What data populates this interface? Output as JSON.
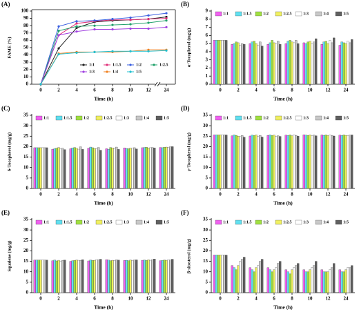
{
  "chart_data": [
    {
      "type": "line",
      "label": "(A)",
      "ylabel": "FAME (%)",
      "xlabel": "Time (h)",
      "categories": [
        "0",
        "2",
        "4",
        "6",
        "8",
        "10",
        "12",
        "24"
      ],
      "ylim": [
        0,
        100
      ],
      "yticks": [
        0,
        10,
        20,
        30,
        40,
        50,
        60,
        70,
        80,
        90,
        100
      ],
      "legend": "lower-right",
      "series": [
        {
          "name": "1:1",
          "color": "#222222",
          "values": [
            0,
            49,
            77,
            85,
            87,
            88,
            89,
            92
          ]
        },
        {
          "name": "1:1.5",
          "color": "#e0307a",
          "values": [
            0,
            67,
            83,
            86,
            88,
            88,
            89,
            90
          ]
        },
        {
          "name": "1:2",
          "color": "#3a5fe0",
          "values": [
            0,
            79,
            86,
            87,
            89,
            91,
            94,
            97
          ]
        },
        {
          "name": "1:2.5",
          "color": "#1fa06a",
          "values": [
            0,
            73,
            79,
            80,
            81,
            82,
            84,
            87
          ]
        },
        {
          "name": "1:3",
          "color": "#a040e0",
          "values": [
            0,
            67,
            72,
            75,
            75,
            76,
            76,
            78
          ]
        },
        {
          "name": "1:4",
          "color": "#f08020",
          "values": [
            0,
            42,
            44,
            44,
            44,
            45,
            47,
            47
          ]
        },
        {
          "name": "1:5",
          "color": "#20c0d0",
          "values": [
            0,
            41,
            43,
            44,
            45,
            45,
            45,
            46
          ]
        }
      ]
    },
    {
      "type": "bar",
      "label": "(B)",
      "ylabel": "α-Tocopherol (mg/g)",
      "xlabel": "Time (h)",
      "categories": [
        "0",
        "2",
        "4",
        "6",
        "8",
        "10",
        "12",
        "24"
      ],
      "ylim": [
        0,
        9
      ],
      "yticks": [
        0,
        1,
        2,
        3,
        4,
        5,
        6,
        7,
        8,
        9
      ],
      "legend": "top",
      "series": [
        {
          "name": "1:1",
          "color": "#f060f0",
          "values": [
            5.4,
            4.9,
            5.0,
            4.9,
            5.0,
            5.1,
            4.9,
            4.8
          ]
        },
        {
          "name": "1:1.5",
          "color": "#60e0f0",
          "values": [
            5.4,
            5.0,
            5.2,
            5.1,
            5.3,
            5.0,
            5.2,
            5.2
          ]
        },
        {
          "name": "1:2",
          "color": "#a0e040",
          "values": [
            5.4,
            5.2,
            5.3,
            5.4,
            5.4,
            5.2,
            5.3,
            5.1
          ]
        },
        {
          "name": "1:2.5",
          "color": "#f0f060",
          "values": [
            5.4,
            5.1,
            5.0,
            5.1,
            5.2,
            5.3,
            5.0,
            5.0
          ]
        },
        {
          "name": "1:3",
          "color": "#ffffff",
          "values": [
            5.4,
            4.8,
            4.8,
            5.0,
            5.1,
            5.0,
            5.4,
            5.3
          ]
        },
        {
          "name": "1:4",
          "color": "#c8c8c8",
          "values": [
            5.4,
            5.0,
            5.2,
            5.3,
            5.4,
            5.2,
            5.1,
            5.1
          ]
        },
        {
          "name": "1:5",
          "color": "#606060",
          "values": [
            5.4,
            4.9,
            4.7,
            4.9,
            5.0,
            5.6,
            5.7,
            5.5
          ]
        }
      ]
    },
    {
      "type": "bar",
      "label": "(C)",
      "ylabel": "δ-Tocopherol (mg/g)",
      "xlabel": "Time (h)",
      "categories": [
        "0",
        "2",
        "4",
        "6",
        "8",
        "10",
        "12",
        "24"
      ],
      "ylim": [
        0,
        35
      ],
      "yticks": [
        0,
        5,
        10,
        15,
        20,
        25,
        30,
        35
      ],
      "legend": "top",
      "series": [
        {
          "name": "1:1",
          "color": "#f060f0",
          "values": [
            19.5,
            18.8,
            19.0,
            19.3,
            19.0,
            19.4,
            19.5,
            19.6
          ]
        },
        {
          "name": "1:1.5",
          "color": "#60e0f0",
          "values": [
            19.5,
            19.0,
            19.4,
            19.8,
            18.7,
            19.1,
            19.6,
            19.5
          ]
        },
        {
          "name": "1:2",
          "color": "#a0e040",
          "values": [
            19.5,
            19.3,
            19.6,
            19.5,
            19.6,
            19.0,
            19.7,
            19.7
          ]
        },
        {
          "name": "1:2.5",
          "color": "#f0f060",
          "values": [
            19.5,
            19.6,
            19.2,
            19.1,
            19.4,
            19.3,
            19.4,
            19.8
          ]
        },
        {
          "name": "1:3",
          "color": "#ffffff",
          "values": [
            19.5,
            18.9,
            18.8,
            19.0,
            19.1,
            19.2,
            19.5,
            19.6
          ]
        },
        {
          "name": "1:4",
          "color": "#c8c8c8",
          "values": [
            19.5,
            19.2,
            19.9,
            19.6,
            19.8,
            19.5,
            19.6,
            19.9
          ]
        },
        {
          "name": "1:5",
          "color": "#606060",
          "values": [
            19.5,
            18.6,
            18.7,
            18.3,
            18.7,
            18.9,
            19.4,
            20.0
          ]
        }
      ]
    },
    {
      "type": "bar",
      "label": "(D)",
      "ylabel": "γ-Tocopherol (mg/g)",
      "xlabel": "Time (h)",
      "categories": [
        "0",
        "2",
        "4",
        "6",
        "8",
        "10",
        "12",
        "24"
      ],
      "ylim": [
        0,
        35
      ],
      "yticks": [
        0,
        5,
        10,
        15,
        20,
        25,
        30,
        35
      ],
      "legend": "top",
      "series": [
        {
          "name": "1:1",
          "color": "#f060f0",
          "values": [
            25.6,
            25.2,
            25.1,
            25.4,
            25.5,
            25.7,
            25.6,
            25.5
          ]
        },
        {
          "name": "1:1.5",
          "color": "#60e0f0",
          "values": [
            25.6,
            25.6,
            25.5,
            25.6,
            25.3,
            25.5,
            25.4,
            25.3
          ]
        },
        {
          "name": "1:2",
          "color": "#a0e040",
          "values": [
            25.6,
            25.4,
            25.3,
            25.3,
            25.6,
            25.4,
            25.6,
            25.6
          ]
        },
        {
          "name": "1:2.5",
          "color": "#f0f060",
          "values": [
            25.6,
            25.0,
            25.6,
            25.5,
            25.2,
            25.6,
            25.3,
            25.4
          ]
        },
        {
          "name": "1:3",
          "color": "#ffffff",
          "values": [
            25.6,
            24.8,
            24.9,
            25.0,
            25.7,
            25.3,
            25.5,
            25.2
          ]
        },
        {
          "name": "1:4",
          "color": "#c8c8c8",
          "values": [
            25.6,
            25.3,
            25.4,
            25.2,
            25.4,
            25.5,
            25.4,
            25.5
          ]
        },
        {
          "name": "1:5",
          "color": "#606060",
          "values": [
            25.6,
            24.5,
            24.6,
            24.9,
            25.0,
            25.2,
            25.1,
            25.6
          ]
        }
      ]
    },
    {
      "type": "bar",
      "label": "(E)",
      "ylabel": "Squalene (mg/g)",
      "xlabel": "Time (h)",
      "categories": [
        "0",
        "2",
        "4",
        "6",
        "8",
        "10",
        "12",
        "24"
      ],
      "ylim": [
        0,
        35
      ],
      "yticks": [
        0,
        5,
        10,
        15,
        20,
        25,
        30,
        35
      ],
      "legend": "top",
      "series": [
        {
          "name": "1:1",
          "color": "#f060f0",
          "values": [
            15.6,
            15.3,
            15.0,
            15.2,
            15.8,
            15.4,
            15.5,
            15.3
          ]
        },
        {
          "name": "1:1.5",
          "color": "#60e0f0",
          "values": [
            15.6,
            15.6,
            15.3,
            15.6,
            15.6,
            15.5,
            15.6,
            15.4
          ]
        },
        {
          "name": "1:2",
          "color": "#a0e040",
          "values": [
            15.6,
            15.2,
            15.4,
            15.4,
            15.3,
            15.3,
            15.4,
            15.6
          ]
        },
        {
          "name": "1:2.5",
          "color": "#f0f060",
          "values": [
            15.6,
            15.5,
            15.6,
            15.5,
            15.5,
            15.6,
            15.7,
            15.5
          ]
        },
        {
          "name": "1:3",
          "color": "#ffffff",
          "values": [
            15.6,
            15.0,
            15.5,
            15.8,
            15.4,
            15.4,
            15.5,
            15.7
          ]
        },
        {
          "name": "1:4",
          "color": "#c8c8c8",
          "values": [
            15.6,
            15.4,
            15.4,
            15.7,
            15.7,
            15.6,
            15.8,
            15.6
          ]
        },
        {
          "name": "1:5",
          "color": "#606060",
          "values": [
            15.6,
            15.6,
            15.8,
            16.0,
            15.6,
            15.7,
            16.1,
            16.0
          ]
        }
      ]
    },
    {
      "type": "bar",
      "label": "(F)",
      "ylabel": "β-sitosterol (mg/g)",
      "xlabel": "Time (h)",
      "categories": [
        "0",
        "2",
        "4",
        "6",
        "8",
        "10",
        "12",
        "24"
      ],
      "ylim": [
        0,
        35
      ],
      "yticks": [
        0,
        5,
        10,
        15,
        20,
        25,
        30,
        35
      ],
      "legend": "top",
      "series": [
        {
          "name": "1:1",
          "color": "#f060f0",
          "values": [
            18,
            13,
            12,
            12,
            11,
            11,
            11,
            11
          ]
        },
        {
          "name": "1:1.5",
          "color": "#60e0f0",
          "values": [
            18,
            12,
            11,
            11,
            10,
            10,
            10,
            10
          ]
        },
        {
          "name": "1:2",
          "color": "#a0e040",
          "values": [
            18,
            11,
            10,
            10,
            9,
            10,
            10,
            10
          ]
        },
        {
          "name": "1:2.5",
          "color": "#f0f060",
          "values": [
            18,
            13,
            12,
            11,
            11,
            11,
            10,
            11
          ]
        },
        {
          "name": "1:3",
          "color": "#ffffff",
          "values": [
            18,
            15,
            13,
            12,
            12,
            12,
            11,
            12
          ]
        },
        {
          "name": "1:4",
          "color": "#c8c8c8",
          "values": [
            18,
            16,
            15,
            14,
            13,
            13,
            12,
            12
          ]
        },
        {
          "name": "1:5",
          "color": "#606060",
          "values": [
            18,
            17,
            16,
            15,
            14,
            15,
            14,
            13
          ]
        }
      ]
    }
  ]
}
